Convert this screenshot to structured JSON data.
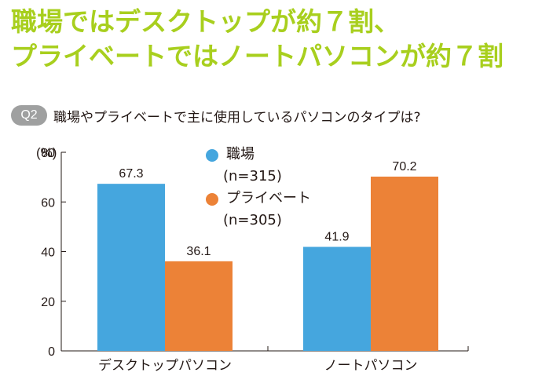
{
  "headline": {
    "line1": "職場ではデスクトップが約７割、",
    "line2": "プライベートではノートパソコンが約７割"
  },
  "question": {
    "badge": "Q2",
    "text": "職場やプライベートで主に使用しているパソコンのタイプは?"
  },
  "colors": {
    "headline": "#a8cf1e",
    "badge": "#9fa0a0",
    "series_work": "#45a6de",
    "series_private": "#ec8237"
  },
  "chart_data": {
    "type": "bar",
    "categories": [
      "デスクトップパソコン",
      "ノートパソコン"
    ],
    "series": [
      {
        "name": "職場",
        "n_label": "(n=315)",
        "color": "#45a6de",
        "values": [
          67.3,
          41.9
        ]
      },
      {
        "name": "プライベート",
        "n_label": "(n=305)",
        "color": "#ec8237",
        "values": [
          36.1,
          70.2
        ]
      }
    ],
    "ylim": [
      0,
      80
    ],
    "yticks": [
      0,
      20,
      40,
      60,
      80
    ],
    "ytick_labels": [
      "0",
      "20",
      "40",
      "60",
      "80"
    ],
    "yunit": "(%)",
    "xlabel": "",
    "ylabel": "",
    "grid": false,
    "legend": "top-center"
  }
}
